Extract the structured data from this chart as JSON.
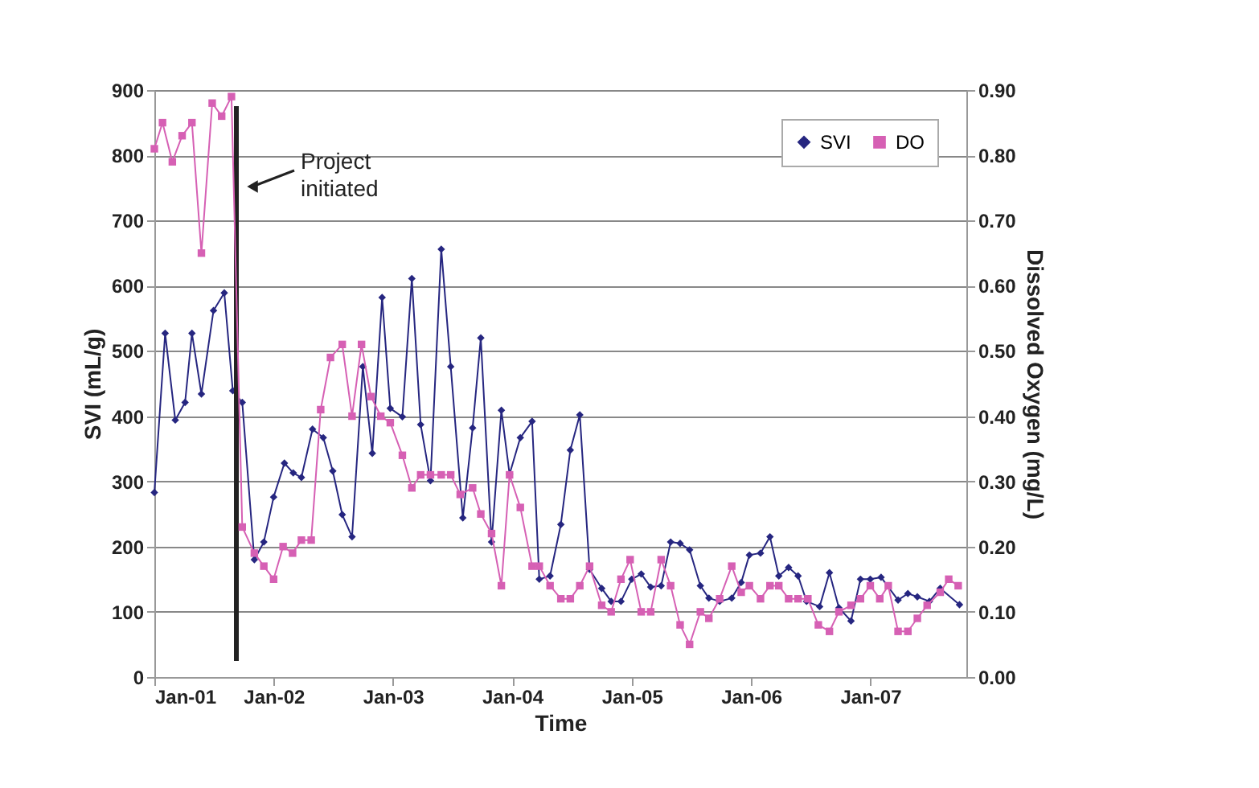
{
  "chart_data": {
    "type": "line",
    "xlabel": "Time",
    "ylabel": "SVI (mL/g)",
    "y2label": "Dissolved Oxygen (mg/L)",
    "xlim": [
      "2001-01-01",
      "2007-10-22"
    ],
    "xticks": [
      {
        "value": "2001-01",
        "label": "Jan-01"
      },
      {
        "value": "2002-01",
        "label": "Jan-02"
      },
      {
        "value": "2003-01",
        "label": "Jan-03"
      },
      {
        "value": "2004-01",
        "label": "Jan-04"
      },
      {
        "value": "2005-01",
        "label": "Jan-05"
      },
      {
        "value": "2006-01",
        "label": "Jan-06"
      },
      {
        "value": "2007-01",
        "label": "Jan-07"
      }
    ],
    "ylim": [
      0,
      900
    ],
    "yticks": [
      0,
      100,
      200,
      300,
      400,
      500,
      600,
      700,
      800,
      900
    ],
    "y2lim": [
      0,
      0.9
    ],
    "y2ticks": [
      {
        "value": 0,
        "label": "0.00"
      },
      {
        "value": 0.1,
        "label": "0.10"
      },
      {
        "value": 0.2,
        "label": "0.20"
      },
      {
        "value": 0.3,
        "label": "0.30"
      },
      {
        "value": 0.4,
        "label": "0.40"
      },
      {
        "value": 0.5,
        "label": "0.50"
      },
      {
        "value": 0.6,
        "label": "0.60"
      },
      {
        "value": 0.7,
        "label": "0.70"
      },
      {
        "value": 0.8,
        "label": "0.80"
      },
      {
        "value": 0.9,
        "label": "0.90"
      }
    ],
    "grid": "y",
    "legend": "top right",
    "line_style": "solid",
    "ref_lines": [
      {
        "axis": "x",
        "value": "2001-09-09",
        "label": "Project initiated",
        "color": "#222222"
      }
    ],
    "series": [
      {
        "name": "SVI",
        "color": "#262680",
        "marker": "diamond",
        "x": [
          "2001-01-01",
          "2001-02-03",
          "2001-03-06",
          "2001-04-05",
          "2001-04-26",
          "2001-05-25",
          "2001-07-01",
          "2001-08-03",
          "2001-08-29",
          "2001-09-27",
          "2001-11-03",
          "2001-12-02",
          "2002-01-01",
          "2002-02-03",
          "2002-03-02",
          "2002-03-27",
          "2002-04-30",
          "2002-06-02",
          "2002-07-01",
          "2002-07-30",
          "2002-08-29",
          "2002-10-01",
          "2002-10-30",
          "2002-11-29",
          "2002-12-24",
          "2003-01-30",
          "2003-02-28",
          "2003-03-27",
          "2003-04-26",
          "2003-05-29",
          "2003-06-27",
          "2003-08-03",
          "2003-09-02",
          "2003-09-27",
          "2003-10-30",
          "2003-11-29",
          "2003-12-24",
          "2004-01-26",
          "2004-03-02",
          "2004-03-24",
          "2004-04-26",
          "2004-05-29",
          "2004-06-27",
          "2004-07-26",
          "2004-08-25",
          "2004-10-01",
          "2004-10-30",
          "2004-11-29",
          "2005-01-01",
          "2005-01-30",
          "2005-02-28",
          "2005-04-01",
          "2005-04-30",
          "2005-05-29",
          "2005-06-27",
          "2005-07-30",
          "2005-08-25",
          "2005-09-27",
          "2005-11-03",
          "2005-12-02",
          "2005-12-27",
          "2006-01-30",
          "2006-02-28",
          "2006-03-27",
          "2006-04-26",
          "2006-05-25",
          "2006-06-20",
          "2006-07-30",
          "2006-08-29",
          "2006-09-27",
          "2006-11-03",
          "2006-12-02",
          "2007-01-01",
          "2007-02-03",
          "2007-03-27",
          "2007-04-26",
          "2007-05-25",
          "2007-07-01",
          "2007-08-03",
          "2007-10-01"
        ],
        "values": [
          283,
          527,
          394,
          421,
          527,
          434,
          562,
          589,
          439,
          421,
          180,
          207,
          276,
          328,
          313,
          306,
          380,
          367,
          316,
          249,
          215,
          476,
          343,
          582,
          412,
          399,
          611,
          387,
          301,
          656,
          476,
          244,
          382,
          520,
          207,
          409,
          311,
          367,
          392,
          150,
          155,
          234,
          348,
          402,
          165,
          136,
          116,
          116,
          150,
          158,
          138,
          140,
          207,
          205,
          195,
          140,
          121,
          116,
          121,
          145,
          187,
          190,
          215,
          155,
          168,
          155,
          116,
          108,
          160,
          106,
          86,
          150,
          150,
          153,
          118,
          128,
          123,
          116,
          136,
          111
        ]
      },
      {
        "name": "DO",
        "color": "#d660b4",
        "marker": "square",
        "axis": "y2",
        "x": [
          "2001-01-01",
          "2001-01-26",
          "2001-02-25",
          "2001-03-27",
          "2001-04-26",
          "2001-05-25",
          "2001-06-27",
          "2001-07-26",
          "2001-08-25",
          "2001-09-27",
          "2001-11-03",
          "2001-12-02",
          "2002-01-01",
          "2002-01-30",
          "2002-02-28",
          "2002-03-27",
          "2002-04-26",
          "2002-05-25",
          "2002-06-24",
          "2002-07-30",
          "2002-08-29",
          "2002-09-27",
          "2002-10-26",
          "2002-11-25",
          "2002-12-24",
          "2003-01-30",
          "2003-02-28",
          "2003-03-27",
          "2003-04-26",
          "2003-05-29",
          "2003-06-27",
          "2003-07-26",
          "2003-09-02",
          "2003-09-27",
          "2003-10-30",
          "2003-11-29",
          "2003-12-24",
          "2004-01-26",
          "2004-03-02",
          "2004-03-24",
          "2004-04-26",
          "2004-05-29",
          "2004-06-27",
          "2004-07-26",
          "2004-08-25",
          "2004-10-01",
          "2004-10-30",
          "2004-11-29",
          "2004-12-27",
          "2005-01-30",
          "2005-02-28",
          "2005-04-01",
          "2005-04-30",
          "2005-05-29",
          "2005-06-27",
          "2005-07-30",
          "2005-08-25",
          "2005-09-27",
          "2005-11-03",
          "2005-12-02",
          "2005-12-27",
          "2006-01-30",
          "2006-02-28",
          "2006-03-27",
          "2006-04-26",
          "2006-05-25",
          "2006-06-24",
          "2006-07-26",
          "2006-08-29",
          "2006-09-27",
          "2006-11-03",
          "2006-12-02",
          "2007-01-01",
          "2007-01-30",
          "2007-02-25",
          "2007-03-27",
          "2007-04-26",
          "2007-05-25",
          "2007-06-24",
          "2007-08-03",
          "2007-08-29",
          "2007-09-27"
        ],
        "values": [
          0.81,
          0.85,
          0.79,
          0.83,
          0.85,
          0.65,
          0.88,
          0.86,
          0.89,
          0.23,
          0.19,
          0.17,
          0.15,
          0.2,
          0.19,
          0.21,
          0.21,
          0.41,
          0.49,
          0.51,
          0.4,
          0.51,
          0.43,
          0.4,
          0.39,
          0.34,
          0.29,
          0.31,
          0.31,
          0.31,
          0.31,
          0.28,
          0.29,
          0.25,
          0.22,
          0.14,
          0.31,
          0.26,
          0.17,
          0.17,
          0.14,
          0.12,
          0.12,
          0.14,
          0.17,
          0.11,
          0.1,
          0.15,
          0.18,
          0.1,
          0.1,
          0.18,
          0.14,
          0.08,
          0.05,
          0.1,
          0.09,
          0.12,
          0.17,
          0.13,
          0.14,
          0.12,
          0.14,
          0.14,
          0.12,
          0.12,
          0.12,
          0.08,
          0.07,
          0.1,
          0.11,
          0.12,
          0.14,
          0.12,
          0.14,
          0.07,
          0.07,
          0.09,
          0.11,
          0.13,
          0.15,
          0.14
        ]
      }
    ]
  }
}
